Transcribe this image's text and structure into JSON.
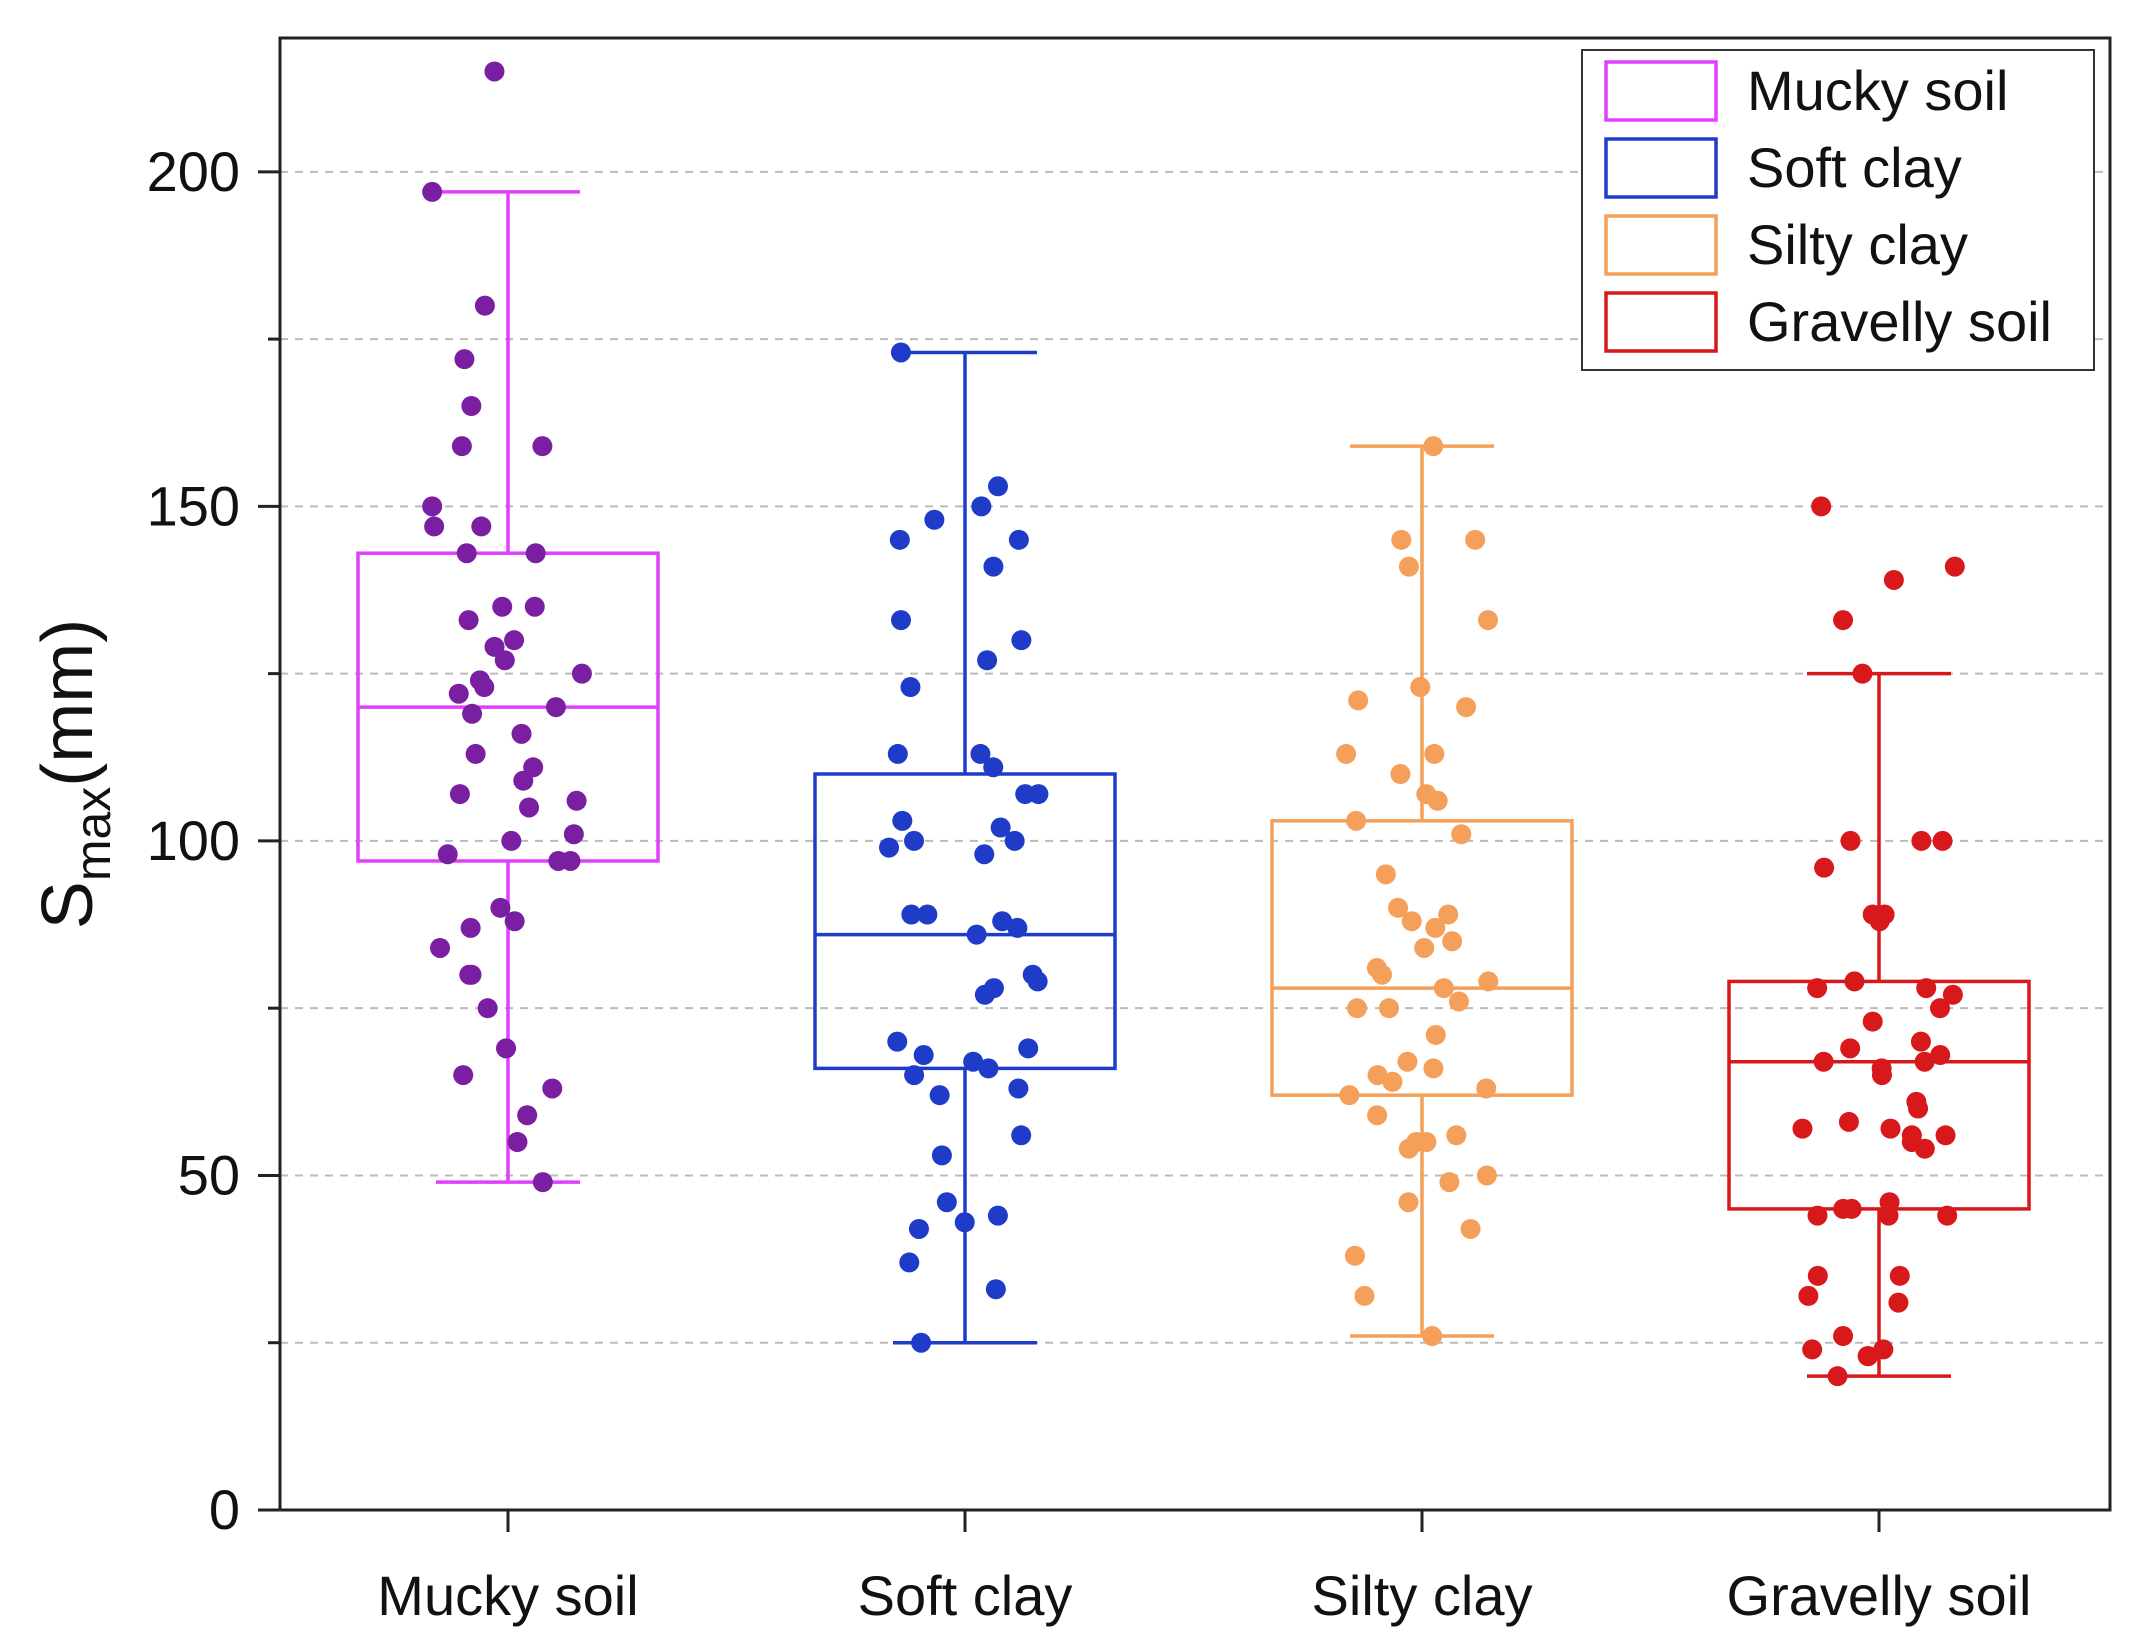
{
  "chart_data": {
    "type": "box",
    "title": "",
    "xlabel": "",
    "ylabel_main": "S",
    "ylabel_sub": "max",
    "ylabel_unit": "(mm)",
    "ylim": [
      0,
      220
    ],
    "y_ticks": [
      0,
      50,
      100,
      150,
      200
    ],
    "y_grid": [
      25,
      50,
      75,
      100,
      125,
      150,
      175,
      200
    ],
    "categories": [
      "Mucky soil",
      "Soft clay",
      "Silty clay",
      "Gravelly soil"
    ],
    "legend_position": "top-right",
    "series": [
      {
        "name": "Mucky soil",
        "box_color": "#e040fb",
        "point_color": "#7b1fa2",
        "whisker_low": 49,
        "q1": 97,
        "median": 120,
        "q3": 143,
        "whisker_high": 197,
        "points": [
          215,
          197,
          180,
          172,
          165,
          159,
          159,
          150,
          147,
          147,
          143,
          143,
          135,
          135,
          133,
          130,
          129,
          127,
          125,
          124,
          123,
          122,
          120,
          119,
          116,
          113,
          111,
          109,
          107,
          106,
          105,
          101,
          100,
          98,
          97,
          97,
          90,
          88,
          87,
          84,
          80,
          80,
          75,
          69,
          65,
          63,
          59,
          55,
          49
        ]
      },
      {
        "name": "Soft clay",
        "box_color": "#1e3cc8",
        "point_color": "#1e3cc8",
        "whisker_low": 25,
        "q1": 66,
        "median": 86,
        "q3": 110,
        "whisker_high": 173,
        "points": [
          173,
          153,
          150,
          148,
          145,
          145,
          141,
          133,
          130,
          127,
          123,
          113,
          113,
          111,
          107,
          107,
          103,
          102,
          100,
          100,
          99,
          98,
          89,
          89,
          88,
          87,
          86,
          80,
          79,
          78,
          77,
          70,
          69,
          68,
          67,
          66,
          65,
          63,
          62,
          56,
          53,
          46,
          44,
          43,
          42,
          37,
          33,
          25
        ]
      },
      {
        "name": "Silty clay",
        "box_color": "#f5a05a",
        "point_color": "#f5a05a",
        "whisker_low": 26,
        "q1": 62,
        "median": 78,
        "q3": 103,
        "whisker_high": 159,
        "points": [
          159,
          145,
          145,
          141,
          133,
          123,
          121,
          120,
          113,
          113,
          110,
          107,
          106,
          103,
          101,
          95,
          90,
          89,
          88,
          87,
          85,
          84,
          81,
          80,
          79,
          78,
          76,
          75,
          75,
          71,
          67,
          66,
          65,
          64,
          63,
          62,
          59,
          56,
          55,
          55,
          54,
          50,
          49,
          46,
          42,
          38,
          32,
          26
        ]
      },
      {
        "name": "Gravelly soil",
        "box_color": "#d7191c",
        "point_color": "#d7191c",
        "whisker_low": 20,
        "q1": 45,
        "median": 67,
        "q3": 79,
        "whisker_high": 125,
        "points": [
          150,
          141,
          139,
          133,
          125,
          100,
          100,
          100,
          96,
          89,
          89,
          88,
          79,
          78,
          78,
          77,
          75,
          73,
          70,
          69,
          68,
          67,
          67,
          66,
          65,
          61,
          60,
          58,
          57,
          57,
          56,
          56,
          55,
          54,
          46,
          45,
          45,
          44,
          44,
          44,
          35,
          35,
          32,
          31,
          26,
          24,
          24,
          23,
          23,
          20
        ]
      }
    ]
  }
}
